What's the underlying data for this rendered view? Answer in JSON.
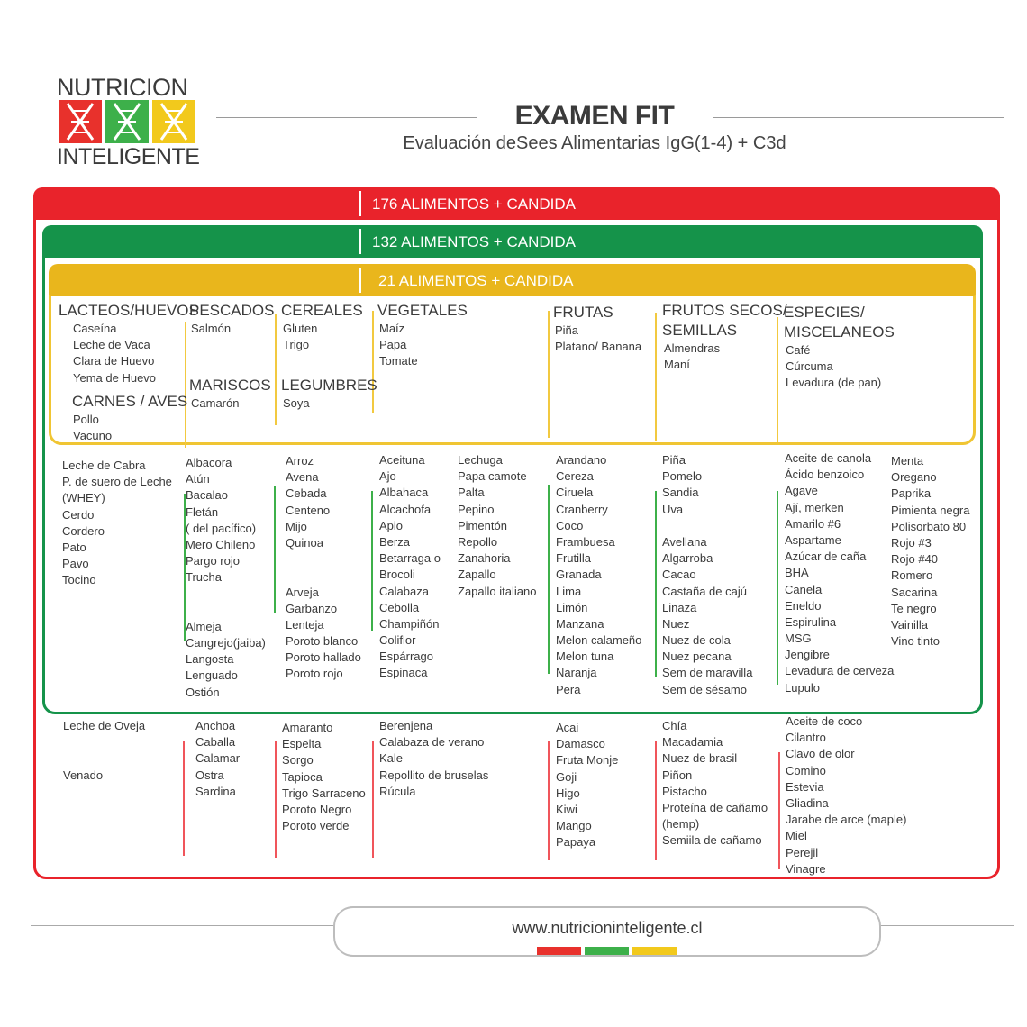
{
  "logo": {
    "line1": "NUTRICION",
    "line2": "INTELIGENTE",
    "colors": [
      "#e8312c",
      "#3db04a",
      "#f2c91c"
    ],
    "icon": "dna-helix-icon"
  },
  "header": {
    "title": "EXAMEN FIT",
    "subtitle": "Evaluación deSees Alimentarias IgG(1-4) + C3d"
  },
  "colors": {
    "red": "#e9232b",
    "green": "#15934a",
    "yellow": "#e9b61c"
  },
  "sections": [
    {
      "id": "yellow",
      "header": "21 ALIMENTOS + CANDIDA",
      "columns": [
        [
          {
            "heading": "LACTEOS/HUEVOS"
          },
          "Caseína",
          "Leche de Vaca",
          "Clara de Huevo",
          "Yema de Huevo",
          {
            "heading": "CARNES / AVES"
          },
          "Pollo",
          "Vacuno"
        ],
        [
          {
            "heading": "PESCADOS"
          },
          "Salmón",
          "",
          "",
          {
            "heading": "MARISCOS"
          },
          "Camarón"
        ],
        [
          {
            "heading": "CEREALES"
          },
          "Gluten",
          "Trigo",
          "",
          {
            "heading": "LEGUMBRES"
          },
          "Soya"
        ],
        [
          {
            "heading": "VEGETALES"
          },
          "Maíz",
          "Papa",
          "Tomate"
        ],
        [
          {
            "heading": "FRUTAS"
          },
          "Piña",
          "Platano/ Banana"
        ],
        [
          {
            "heading": "FRUTOS SECOS/"
          },
          {
            "heading": "SEMILLAS"
          },
          "Almendras",
          "Maní"
        ],
        [
          {
            "heading": "ESPECIES/"
          },
          {
            "heading": "MISCELANEOS"
          },
          "Café",
          "Cúrcuma",
          "Levadura (de pan)"
        ]
      ]
    },
    {
      "id": "green",
      "header": "132 ALIMENTOS + CANDIDA",
      "columns": [
        [
          "Leche de Cabra",
          "P. de suero de Leche",
          "(WHEY)",
          "Cerdo",
          "Cordero",
          "Pato",
          "Pavo",
          "Tocino"
        ],
        [
          "Albacora",
          "Atún",
          "Bacalao",
          "Fletán",
          "( del pacífico)",
          "Mero Chileno",
          "Pargo rojo",
          "Trucha",
          "",
          "",
          "Almeja",
          "Cangrejo(jaiba)",
          "Langosta",
          "Lenguado",
          "Ostión"
        ],
        [
          "Arroz",
          "Avena",
          "Cebada",
          "Centeno",
          "Mijo",
          "Quinoa",
          "",
          "",
          "Arveja",
          "Garbanzo",
          "Lenteja",
          "Poroto blanco",
          "Poroto hallado",
          "Poroto rojo"
        ],
        [
          "Aceituna",
          "Ajo",
          "Albahaca",
          "Alcachofa",
          "Apio",
          "Berza",
          "Betarraga o",
          "Brocoli",
          "Calabaza",
          "Cebolla",
          "Champiñón",
          "Coliflor",
          "Espárrago",
          "Espinaca"
        ],
        [
          "Lechuga",
          "Papa camote",
          "Palta",
          "Pepino",
          "Pimentón",
          "Repollo",
          "Zanahoria",
          "Zapallo",
          "Zapallo italiano"
        ],
        [
          "Arandano",
          "Cereza",
          "Ciruela",
          "Cranberry",
          "Coco",
          "Frambuesa",
          "Frutilla",
          "Granada",
          "Lima",
          "Limón",
          "Manzana",
          "Melon calameño",
          "Melon tuna",
          "Naranja",
          "Pera"
        ],
        [
          "Piña",
          "Pomelo",
          "Sandia",
          "Uva",
          "",
          "Avellana",
          "Algarroba",
          "Cacao",
          "Castaña de cajú",
          "Linaza",
          "Nuez",
          "Nuez de cola",
          "Nuez pecana",
          "Sem de maravilla",
          "Sem de sésamo"
        ],
        [
          "Aceite de canola",
          "Ácido benzoico",
          "Agave",
          "Ají, merken",
          "Amarilo #6",
          "Aspartame",
          "Azúcar de caña",
          "BHA",
          "Canela",
          "Eneldo",
          "Espirulina",
          "MSG",
          "Jengibre",
          "Levadura de cerveza",
          "Lupulo"
        ],
        [
          "Menta",
          "Oregano",
          "Paprika",
          "Pimienta negra",
          "Polisorbato 80",
          "Rojo #3",
          "Rojo #40",
          "Romero",
          "Sacarina",
          "Te negro",
          "Vainilla",
          "Vino tinto"
        ]
      ]
    },
    {
      "id": "red",
      "header": "176 ALIMENTOS + CANDIDA",
      "columns": [
        [
          "Leche de Oveja",
          "",
          "",
          "Venado"
        ],
        [
          "Anchoa",
          "Caballa",
          "Calamar",
          "Ostra",
          "Sardina"
        ],
        [
          "Amaranto",
          "Espelta",
          "Sorgo",
          "Tapioca",
          "Trigo Sarraceno",
          "Poroto Negro",
          "Poroto verde"
        ],
        [
          "Berenjena",
          "Calabaza de verano",
          "Kale",
          "Repollito de bruselas",
          "Rúcula"
        ],
        [
          "Acai",
          "Damasco",
          "Fruta Monje",
          "Goji",
          "Higo",
          "Kiwi",
          "Mango",
          "Papaya"
        ],
        [
          "Chía",
          "Macadamia",
          "Nuez de brasil",
          "Piñon",
          "Pistacho",
          "Proteína de cañamo",
          "(hemp)",
          "Semiila de cañamo"
        ],
        [
          "Aceite de coco",
          "Cilantro",
          "Clavo de olor",
          "Comino",
          "Estevia",
          "Gliadina",
          "Jarabe de arce (maple)",
          "Miel",
          "Perejil",
          "Vinagre"
        ]
      ]
    }
  ],
  "footer": {
    "url": "www.nutricioninteligente.cl",
    "bar_colors": [
      "#e8312c",
      "#3db04a",
      "#f2c91c"
    ]
  }
}
